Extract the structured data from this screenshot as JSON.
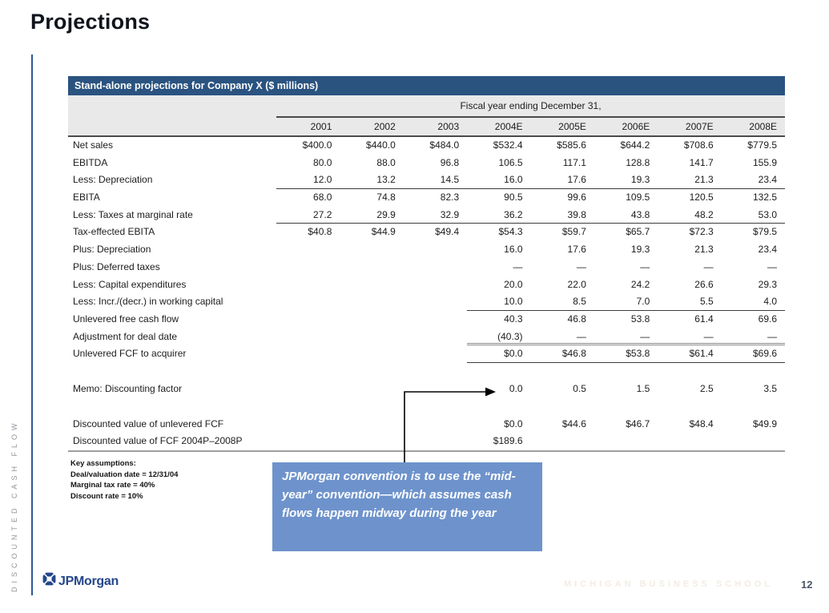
{
  "slide": {
    "title": "Projections",
    "sidebar_text": "DISCOUNTED CASH FLOW",
    "page_number": "12",
    "footer_brand": "JPMorgan",
    "footer_school": "MICHIGAN BUSINESS SCHOOL"
  },
  "table": {
    "header_bar": "Stand-alone projections for Company X ($ millions)",
    "fiscal_label": "Fiscal year ending December 31,",
    "years": [
      "2001",
      "2002",
      "2003",
      "2004E",
      "2005E",
      "2006E",
      "2007E",
      "2008E"
    ],
    "rows": [
      {
        "label": "Net sales",
        "values": [
          "$400.0",
          "$440.0",
          "$484.0",
          "$532.4",
          "$585.6",
          "$644.2",
          "$708.6",
          "$779.5"
        ]
      },
      {
        "label": "EBITDA",
        "values": [
          "80.0",
          "88.0",
          "96.8",
          "106.5",
          "117.1",
          "128.8",
          "141.7",
          "155.9"
        ]
      },
      {
        "label": "Less: Depreciation",
        "rule": "thin",
        "values": [
          "12.0",
          "13.2",
          "14.5",
          "16.0",
          "17.6",
          "19.3",
          "21.3",
          "23.4"
        ]
      },
      {
        "label": "EBITA",
        "values": [
          "68.0",
          "74.8",
          "82.3",
          "90.5",
          "99.6",
          "109.5",
          "120.5",
          "132.5"
        ]
      },
      {
        "label": "Less: Taxes at marginal rate",
        "rule": "thin",
        "values": [
          "27.2",
          "29.9",
          "32.9",
          "36.2",
          "39.8",
          "43.8",
          "48.2",
          "53.0"
        ]
      },
      {
        "label": "Tax-effected EBITA",
        "values": [
          "$40.8",
          "$44.9",
          "$49.4",
          "$54.3",
          "$59.7",
          "$65.7",
          "$72.3",
          "$79.5"
        ]
      },
      {
        "label": "Plus: Depreciation",
        "values": [
          "",
          "",
          "",
          "16.0",
          "17.6",
          "19.3",
          "21.3",
          "23.4"
        ]
      },
      {
        "label": "Plus: Deferred taxes",
        "values": [
          "",
          "",
          "",
          "—",
          "—",
          "—",
          "—",
          "—"
        ]
      },
      {
        "label": "Less: Capital expenditures",
        "values": [
          "",
          "",
          "",
          "20.0",
          "22.0",
          "24.2",
          "26.6",
          "29.3"
        ]
      },
      {
        "label": "Less: Incr./(decr.) in working capital",
        "rule": "thin_est",
        "values": [
          "",
          "",
          "",
          "10.0",
          "8.5",
          "7.0",
          "5.5",
          "4.0"
        ]
      },
      {
        "label": "Unlevered free cash flow",
        "values": [
          "",
          "",
          "",
          "40.3",
          "46.8",
          "53.8",
          "61.4",
          "69.6"
        ]
      },
      {
        "label": "Adjustment for deal date",
        "rule": "double_est",
        "values": [
          "",
          "",
          "",
          "(40.3)",
          "—",
          "—",
          "—",
          "—"
        ]
      },
      {
        "label": "Unlevered FCF to acquirer",
        "rule": "thin_est",
        "values": [
          "",
          "",
          "",
          "$0.0",
          "$46.8",
          "$53.8",
          "$61.4",
          "$69.6"
        ]
      },
      {
        "label": "Memo: Discounting factor",
        "spacer_before": true,
        "values": [
          "",
          "",
          "",
          "0.0",
          "0.5",
          "1.5",
          "2.5",
          "3.5"
        ]
      },
      {
        "label": "Discounted value of unlevered FCF",
        "spacer_before": true,
        "values": [
          "",
          "",
          "",
          "$0.0",
          "$44.6",
          "$46.7",
          "$48.4",
          "$49.9"
        ]
      },
      {
        "label": "Discounted value of FCF 2004P–2008P",
        "values": [
          "",
          "",
          "",
          "$189.6",
          "",
          "",
          "",
          ""
        ]
      }
    ]
  },
  "assumptions": {
    "title": "Key assumptions:",
    "line1": "Deal/valuation date = 12/31/04",
    "line2": "Marginal tax rate = 40%",
    "line3": "Discount rate = 10%"
  },
  "callout": {
    "text": "JPMorgan convention is to use the “mid-year” convention—which assumes cash flows happen midway during the year"
  },
  "colors": {
    "header_bar_blue": "#2a5380",
    "table_band_gray": "#e9e9e9",
    "callout_blue": "#6e93cc",
    "logo_navy": "#24478b",
    "accent_line_blue": "#2e5a97",
    "school_watermark": "#f3ece3"
  }
}
